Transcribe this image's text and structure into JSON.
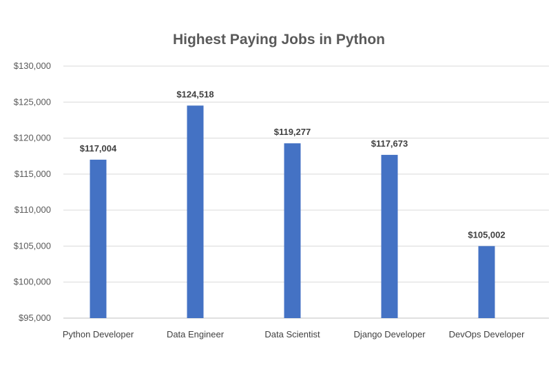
{
  "chart_data": {
    "type": "bar",
    "title": "Highest Paying Jobs in Python",
    "categories": [
      "Python Developer",
      "Data Engineer",
      "Data Scientist",
      "Django Developer",
      "DevOps Developer"
    ],
    "values": [
      117004,
      124518,
      119277,
      117673,
      105002
    ],
    "value_labels": [
      "$117,004",
      "$124,518",
      "$119,277",
      "$117,673",
      "$105,002"
    ],
    "y_ticks": [
      95000,
      100000,
      105000,
      110000,
      115000,
      120000,
      125000,
      130000
    ],
    "y_tick_labels": [
      "$95,000",
      "$100,000",
      "$105,000",
      "$110,000",
      "$115,000",
      "$120,000",
      "$125,000",
      "$130,000"
    ],
    "ylim": [
      95000,
      130000
    ],
    "xlabel": "",
    "ylabel": "",
    "grid": true,
    "legend": "none",
    "bar_color": "#4472C4"
  }
}
